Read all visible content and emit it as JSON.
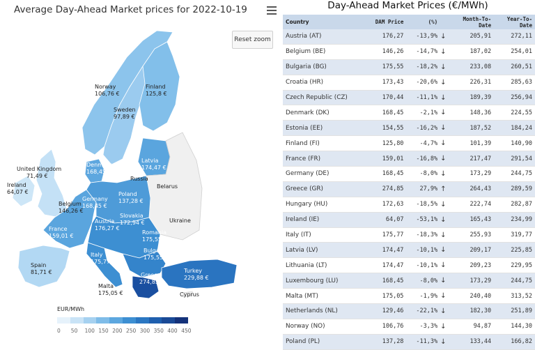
{
  "map": {
    "title": "Average Day-Ahead Market prices for 2022-10-19",
    "reset_zoom": "Reset zoom",
    "legend_title": "EUR/MWh",
    "legend_ticks": [
      "0",
      "50",
      "100",
      "150",
      "200",
      "250",
      "300",
      "350",
      "400",
      "450"
    ],
    "legend_colors": [
      "#e6f2fb",
      "#c9e3f6",
      "#a6d1f0",
      "#7fbce8",
      "#5ca7df",
      "#3d8fd2",
      "#2b77c2",
      "#1f5fae",
      "#1a4a96",
      "#14327a"
    ],
    "labels": {
      "norway": {
        "name": "Norway",
        "value": "106,76 €"
      },
      "finland": {
        "name": "Finland",
        "value": "125,8 €"
      },
      "sweden": {
        "name": "Sweden",
        "value": "97,89 €"
      },
      "united_kingdom": {
        "name": "United Kingdom",
        "value": "71,49 €"
      },
      "ireland": {
        "name": "Ireland",
        "value": "64,07 €"
      },
      "denmark": {
        "name": "Denmark",
        "value": "168,45 €"
      },
      "latvia": {
        "name": "Latvia",
        "value": "174,47 €"
      },
      "russia": {
        "name": "Russia"
      },
      "belarus": {
        "name": "Belarus"
      },
      "germany": {
        "name": "Germany",
        "value": "168,45 €"
      },
      "belgium": {
        "name": "Belgium",
        "value": "146,26 €"
      },
      "poland": {
        "name": "Poland",
        "value": "137,28 €"
      },
      "ukraine": {
        "name": "Ukraine"
      },
      "slovakia": {
        "name": "Slovakia",
        "value": "172,94 €"
      },
      "austria": {
        "name": "Austria",
        "value": "176,27 €"
      },
      "france": {
        "name": "France",
        "value": "159,01 €"
      },
      "romania": {
        "name": "Romania",
        "value": "175,55 €"
      },
      "bulgaria": {
        "name": "Bulgaria",
        "value": "175,55 €"
      },
      "italy": {
        "name": "Italy",
        "value": "175,77 €"
      },
      "spain": {
        "name": "Spain",
        "value": "81,71 €"
      },
      "turkey": {
        "name": "Turkey",
        "value": "229,88 €"
      },
      "greece": {
        "name": "Greece",
        "value": "274,85 €"
      },
      "malta": {
        "name": "Malta",
        "value": "175,05 €"
      },
      "cyprus": {
        "name": "Cyprus"
      }
    }
  },
  "table": {
    "title": "Day-Ahead Market Prices (€/MWh)",
    "headers": {
      "country": "Country",
      "dam": "DAM Price",
      "pct": "(%)",
      "mtd": "Month-To-Date",
      "ytd": "Year-To-Date"
    },
    "rows": [
      {
        "country": "Austria (AT)",
        "dam": "176,27",
        "pct": "-13,9%",
        "dir": "down",
        "mtd": "205,91",
        "ytd": "272,11"
      },
      {
        "country": "Belgium (BE)",
        "dam": "146,26",
        "pct": "-14,7%",
        "dir": "down",
        "mtd": "187,02",
        "ytd": "254,01"
      },
      {
        "country": "Bulgaria (BG)",
        "dam": "175,55",
        "pct": "-18,2%",
        "dir": "down",
        "mtd": "233,08",
        "ytd": "260,51"
      },
      {
        "country": "Croatia (HR)",
        "dam": "173,43",
        "pct": "-20,6%",
        "dir": "down",
        "mtd": "226,31",
        "ytd": "285,63"
      },
      {
        "country": "Czech Republic (CZ)",
        "dam": "170,44",
        "pct": "-11,1%",
        "dir": "down",
        "mtd": "189,39",
        "ytd": "256,94"
      },
      {
        "country": "Denmark (DK)",
        "dam": "168,45",
        "pct": "-2,1%",
        "dir": "down",
        "mtd": "148,36",
        "ytd": "224,55"
      },
      {
        "country": "Estonia (EE)",
        "dam": "154,55",
        "pct": "-16,2%",
        "dir": "down",
        "mtd": "187,52",
        "ytd": "184,24"
      },
      {
        "country": "Finland (FI)",
        "dam": "125,80",
        "pct": "-4,7%",
        "dir": "down",
        "mtd": "101,39",
        "ytd": "140,90"
      },
      {
        "country": "France (FR)",
        "dam": "159,01",
        "pct": "-16,8%",
        "dir": "down",
        "mtd": "217,47",
        "ytd": "291,54"
      },
      {
        "country": "Germany (DE)",
        "dam": "168,45",
        "pct": "-8,0%",
        "dir": "down",
        "mtd": "173,29",
        "ytd": "244,75"
      },
      {
        "country": "Greece (GR)",
        "dam": "274,85",
        "pct": "27,9%",
        "dir": "up",
        "mtd": "264,43",
        "ytd": "289,59"
      },
      {
        "country": "Hungary (HU)",
        "dam": "172,63",
        "pct": "-18,5%",
        "dir": "down",
        "mtd": "222,74",
        "ytd": "282,87"
      },
      {
        "country": "Ireland (IE)",
        "dam": "64,07",
        "pct": "-53,1%",
        "dir": "down",
        "mtd": "165,43",
        "ytd": "234,99"
      },
      {
        "country": "Italy (IT)",
        "dam": "175,77",
        "pct": "-18,3%",
        "dir": "down",
        "mtd": "255,93",
        "ytd": "319,77"
      },
      {
        "country": "Latvia (LV)",
        "dam": "174,47",
        "pct": "-10,1%",
        "dir": "down",
        "mtd": "209,17",
        "ytd": "225,85"
      },
      {
        "country": "Lithuania (LT)",
        "dam": "174,47",
        "pct": "-10,1%",
        "dir": "down",
        "mtd": "209,23",
        "ytd": "229,95"
      },
      {
        "country": "Luxembourg (LU)",
        "dam": "168,45",
        "pct": "-8,0%",
        "dir": "down",
        "mtd": "173,29",
        "ytd": "244,75"
      },
      {
        "country": "Malta (MT)",
        "dam": "175,05",
        "pct": "-1,9%",
        "dir": "down",
        "mtd": "240,40",
        "ytd": "313,52"
      },
      {
        "country": "Netherlands (NL)",
        "dam": "129,46",
        "pct": "-22,1%",
        "dir": "down",
        "mtd": "182,30",
        "ytd": "251,89"
      },
      {
        "country": "Norway (NO)",
        "dam": "106,76",
        "pct": "-3,3%",
        "dir": "down",
        "mtd": "94,87",
        "ytd": "144,30"
      },
      {
        "country": "Poland (PL)",
        "dam": "137,28",
        "pct": "-11,3%",
        "dir": "down",
        "mtd": "133,44",
        "ytd": "166,82"
      }
    ]
  },
  "colors": {
    "header_bg": "#c9d8ea",
    "row_alt": "#dfe7f2",
    "down": "#e04040",
    "up": "#2a9a3a"
  },
  "icons": {
    "menu": "hamburger-menu-icon",
    "down": "arrow-down-icon",
    "up": "arrow-up-icon"
  }
}
